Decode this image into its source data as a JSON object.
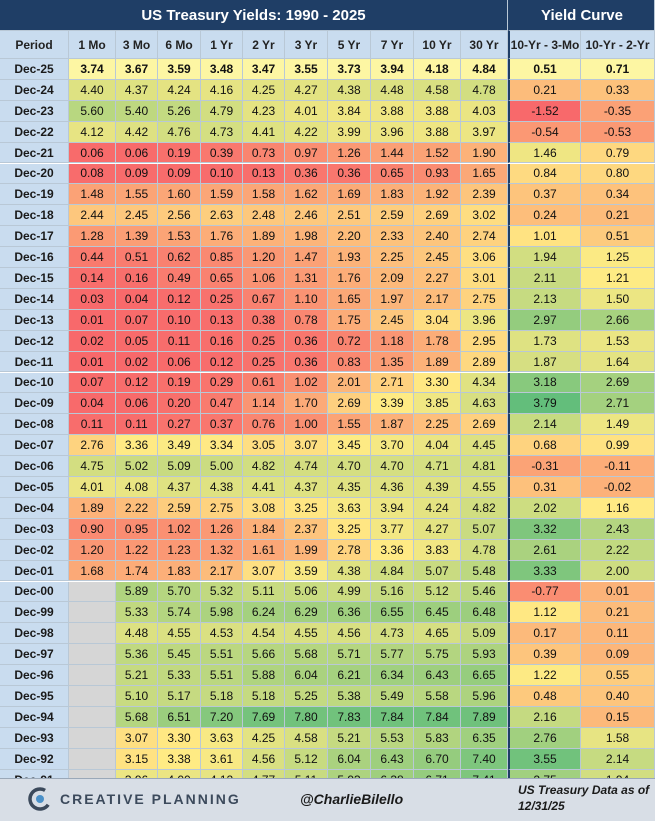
{
  "chart_data": {
    "type": "table",
    "title": "US Treasury Yields: 1990 - 2025",
    "curve_title": "Yield Curve",
    "period_label": "Period",
    "columns": [
      "1 Mo",
      "3 Mo",
      "6 Mo",
      "1 Yr",
      "2 Yr",
      "3 Yr",
      "5 Yr",
      "7 Yr",
      "10 Yr",
      "30 Yr"
    ],
    "curve_columns": [
      "10-Yr - 3-Mo",
      "10-Yr - 2-Yr"
    ],
    "rows": [
      {
        "period": "Dec-25",
        "yields": [
          "3.74",
          "3.67",
          "3.59",
          "3.48",
          "3.47",
          "3.55",
          "3.73",
          "3.94",
          "4.18",
          "4.84"
        ],
        "curve": [
          "0.51",
          "0.71"
        ]
      },
      {
        "period": "Dec-24",
        "yields": [
          "4.40",
          "4.37",
          "4.24",
          "4.16",
          "4.25",
          "4.27",
          "4.38",
          "4.48",
          "4.58",
          "4.78"
        ],
        "curve": [
          "0.21",
          "0.33"
        ]
      },
      {
        "period": "Dec-23",
        "yields": [
          "5.60",
          "5.40",
          "5.26",
          "4.79",
          "4.23",
          "4.01",
          "3.84",
          "3.88",
          "3.88",
          "4.03"
        ],
        "curve": [
          "-1.52",
          "-0.35"
        ]
      },
      {
        "period": "Dec-22",
        "yields": [
          "4.12",
          "4.42",
          "4.76",
          "4.73",
          "4.41",
          "4.22",
          "3.99",
          "3.96",
          "3.88",
          "3.97"
        ],
        "curve": [
          "-0.54",
          "-0.53"
        ]
      },
      {
        "period": "Dec-21",
        "yields": [
          "0.06",
          "0.06",
          "0.19",
          "0.39",
          "0.73",
          "0.97",
          "1.26",
          "1.44",
          "1.52",
          "1.90"
        ],
        "curve": [
          "1.46",
          "0.79"
        ]
      },
      {
        "period": "Dec-20",
        "yields": [
          "0.08",
          "0.09",
          "0.09",
          "0.10",
          "0.13",
          "0.36",
          "0.36",
          "0.65",
          "0.93",
          "1.65"
        ],
        "curve": [
          "0.84",
          "0.80"
        ]
      },
      {
        "period": "Dec-19",
        "yields": [
          "1.48",
          "1.55",
          "1.60",
          "1.59",
          "1.58",
          "1.62",
          "1.69",
          "1.83",
          "1.92",
          "2.39"
        ],
        "curve": [
          "0.37",
          "0.34"
        ]
      },
      {
        "period": "Dec-18",
        "yields": [
          "2.44",
          "2.45",
          "2.56",
          "2.63",
          "2.48",
          "2.46",
          "2.51",
          "2.59",
          "2.69",
          "3.02"
        ],
        "curve": [
          "0.24",
          "0.21"
        ]
      },
      {
        "period": "Dec-17",
        "yields": [
          "1.28",
          "1.39",
          "1.53",
          "1.76",
          "1.89",
          "1.98",
          "2.20",
          "2.33",
          "2.40",
          "2.74"
        ],
        "curve": [
          "1.01",
          "0.51"
        ]
      },
      {
        "period": "Dec-16",
        "yields": [
          "0.44",
          "0.51",
          "0.62",
          "0.85",
          "1.20",
          "1.47",
          "1.93",
          "2.25",
          "2.45",
          "3.06"
        ],
        "curve": [
          "1.94",
          "1.25"
        ]
      },
      {
        "period": "Dec-15",
        "yields": [
          "0.14",
          "0.16",
          "0.49",
          "0.65",
          "1.06",
          "1.31",
          "1.76",
          "2.09",
          "2.27",
          "3.01"
        ],
        "curve": [
          "2.11",
          "1.21"
        ]
      },
      {
        "period": "Dec-14",
        "yields": [
          "0.03",
          "0.04",
          "0.12",
          "0.25",
          "0.67",
          "1.10",
          "1.65",
          "1.97",
          "2.17",
          "2.75"
        ],
        "curve": [
          "2.13",
          "1.50"
        ]
      },
      {
        "period": "Dec-13",
        "yields": [
          "0.01",
          "0.07",
          "0.10",
          "0.13",
          "0.38",
          "0.78",
          "1.75",
          "2.45",
          "3.04",
          "3.96"
        ],
        "curve": [
          "2.97",
          "2.66"
        ]
      },
      {
        "period": "Dec-12",
        "yields": [
          "0.02",
          "0.05",
          "0.11",
          "0.16",
          "0.25",
          "0.36",
          "0.72",
          "1.18",
          "1.78",
          "2.95"
        ],
        "curve": [
          "1.73",
          "1.53"
        ]
      },
      {
        "period": "Dec-11",
        "yields": [
          "0.01",
          "0.02",
          "0.06",
          "0.12",
          "0.25",
          "0.36",
          "0.83",
          "1.35",
          "1.89",
          "2.89"
        ],
        "curve": [
          "1.87",
          "1.64"
        ]
      },
      {
        "period": "Dec-10",
        "yields": [
          "0.07",
          "0.12",
          "0.19",
          "0.29",
          "0.61",
          "1.02",
          "2.01",
          "2.71",
          "3.30",
          "4.34"
        ],
        "curve": [
          "3.18",
          "2.69"
        ]
      },
      {
        "period": "Dec-09",
        "yields": [
          "0.04",
          "0.06",
          "0.20",
          "0.47",
          "1.14",
          "1.70",
          "2.69",
          "3.39",
          "3.85",
          "4.63"
        ],
        "curve": [
          "3.79",
          "2.71"
        ]
      },
      {
        "period": "Dec-08",
        "yields": [
          "0.11",
          "0.11",
          "0.27",
          "0.37",
          "0.76",
          "1.00",
          "1.55",
          "1.87",
          "2.25",
          "2.69"
        ],
        "curve": [
          "2.14",
          "1.49"
        ]
      },
      {
        "period": "Dec-07",
        "yields": [
          "2.76",
          "3.36",
          "3.49",
          "3.34",
          "3.05",
          "3.07",
          "3.45",
          "3.70",
          "4.04",
          "4.45"
        ],
        "curve": [
          "0.68",
          "0.99"
        ]
      },
      {
        "period": "Dec-06",
        "yields": [
          "4.75",
          "5.02",
          "5.09",
          "5.00",
          "4.82",
          "4.74",
          "4.70",
          "4.70",
          "4.71",
          "4.81"
        ],
        "curve": [
          "-0.31",
          "-0.11"
        ]
      },
      {
        "period": "Dec-05",
        "yields": [
          "4.01",
          "4.08",
          "4.37",
          "4.38",
          "4.41",
          "4.37",
          "4.35",
          "4.36",
          "4.39",
          "4.55"
        ],
        "curve": [
          "0.31",
          "-0.02"
        ]
      },
      {
        "period": "Dec-04",
        "yields": [
          "1.89",
          "2.22",
          "2.59",
          "2.75",
          "3.08",
          "3.25",
          "3.63",
          "3.94",
          "4.24",
          "4.82"
        ],
        "curve": [
          "2.02",
          "1.16"
        ]
      },
      {
        "period": "Dec-03",
        "yields": [
          "0.90",
          "0.95",
          "1.02",
          "1.26",
          "1.84",
          "2.37",
          "3.25",
          "3.77",
          "4.27",
          "5.07"
        ],
        "curve": [
          "3.32",
          "2.43"
        ]
      },
      {
        "period": "Dec-02",
        "yields": [
          "1.20",
          "1.22",
          "1.23",
          "1.32",
          "1.61",
          "1.99",
          "2.78",
          "3.36",
          "3.83",
          "4.78"
        ],
        "curve": [
          "2.61",
          "2.22"
        ]
      },
      {
        "period": "Dec-01",
        "yields": [
          "1.68",
          "1.74",
          "1.83",
          "2.17",
          "3.07",
          "3.59",
          "4.38",
          "4.84",
          "5.07",
          "5.48"
        ],
        "curve": [
          "3.33",
          "2.00"
        ]
      },
      {
        "period": "Dec-00",
        "yields": [
          "",
          "5.89",
          "5.70",
          "5.32",
          "5.11",
          "5.06",
          "4.99",
          "5.16",
          "5.12",
          "5.46"
        ],
        "curve": [
          "-0.77",
          "0.01"
        ]
      },
      {
        "period": "Dec-99",
        "yields": [
          "",
          "5.33",
          "5.74",
          "5.98",
          "6.24",
          "6.29",
          "6.36",
          "6.55",
          "6.45",
          "6.48"
        ],
        "curve": [
          "1.12",
          "0.21"
        ]
      },
      {
        "period": "Dec-98",
        "yields": [
          "",
          "4.48",
          "4.55",
          "4.53",
          "4.54",
          "4.55",
          "4.56",
          "4.73",
          "4.65",
          "5.09"
        ],
        "curve": [
          "0.17",
          "0.11"
        ]
      },
      {
        "period": "Dec-97",
        "yields": [
          "",
          "5.36",
          "5.45",
          "5.51",
          "5.66",
          "5.68",
          "5.71",
          "5.77",
          "5.75",
          "5.93"
        ],
        "curve": [
          "0.39",
          "0.09"
        ]
      },
      {
        "period": "Dec-96",
        "yields": [
          "",
          "5.21",
          "5.33",
          "5.51",
          "5.88",
          "6.04",
          "6.21",
          "6.34",
          "6.43",
          "6.65"
        ],
        "curve": [
          "1.22",
          "0.55"
        ]
      },
      {
        "period": "Dec-95",
        "yields": [
          "",
          "5.10",
          "5.17",
          "5.18",
          "5.18",
          "5.25",
          "5.38",
          "5.49",
          "5.58",
          "5.96"
        ],
        "curve": [
          "0.48",
          "0.40"
        ]
      },
      {
        "period": "Dec-94",
        "yields": [
          "",
          "5.68",
          "6.51",
          "7.20",
          "7.69",
          "7.80",
          "7.83",
          "7.84",
          "7.84",
          "7.89"
        ],
        "curve": [
          "2.16",
          "0.15"
        ]
      },
      {
        "period": "Dec-93",
        "yields": [
          "",
          "3.07",
          "3.30",
          "3.63",
          "4.25",
          "4.58",
          "5.21",
          "5.53",
          "5.83",
          "6.35"
        ],
        "curve": [
          "2.76",
          "1.58"
        ]
      },
      {
        "period": "Dec-92",
        "yields": [
          "",
          "3.15",
          "3.38",
          "3.61",
          "4.56",
          "5.12",
          "6.04",
          "6.43",
          "6.70",
          "7.40"
        ],
        "curve": [
          "3.55",
          "2.14"
        ]
      },
      {
        "period": "Dec-91",
        "yields": [
          "",
          "3.96",
          "4.00",
          "4.12",
          "4.77",
          "5.11",
          "5.93",
          "6.38",
          "6.71",
          "7.41"
        ],
        "curve": [
          "2.75",
          "1.94"
        ]
      },
      {
        "period": "Dec-90",
        "yields": [
          "",
          "6.63",
          "6.73",
          "6.82",
          "7.15",
          "7.40",
          "7.68",
          "8.00",
          "8.08",
          "8.26"
        ],
        "curve": [
          "1.45",
          "0.93"
        ]
      }
    ],
    "highlight_row_color": "#fdf6a3",
    "scale_colors": {
      "low": "#f8696b",
      "mid": "#ffeb84",
      "high": "#63be7b",
      "blank": "#d6d6d6"
    }
  },
  "footer": {
    "logo_text": "CREATIVE PLANNING",
    "handle": "@CharlieBilello",
    "source": "US Treasury Data as of 12/31/25"
  },
  "colors": {
    "title_bg": "#1f3e66",
    "header_bg": "#c9dcef",
    "footer_bg": "#d8dee6"
  }
}
